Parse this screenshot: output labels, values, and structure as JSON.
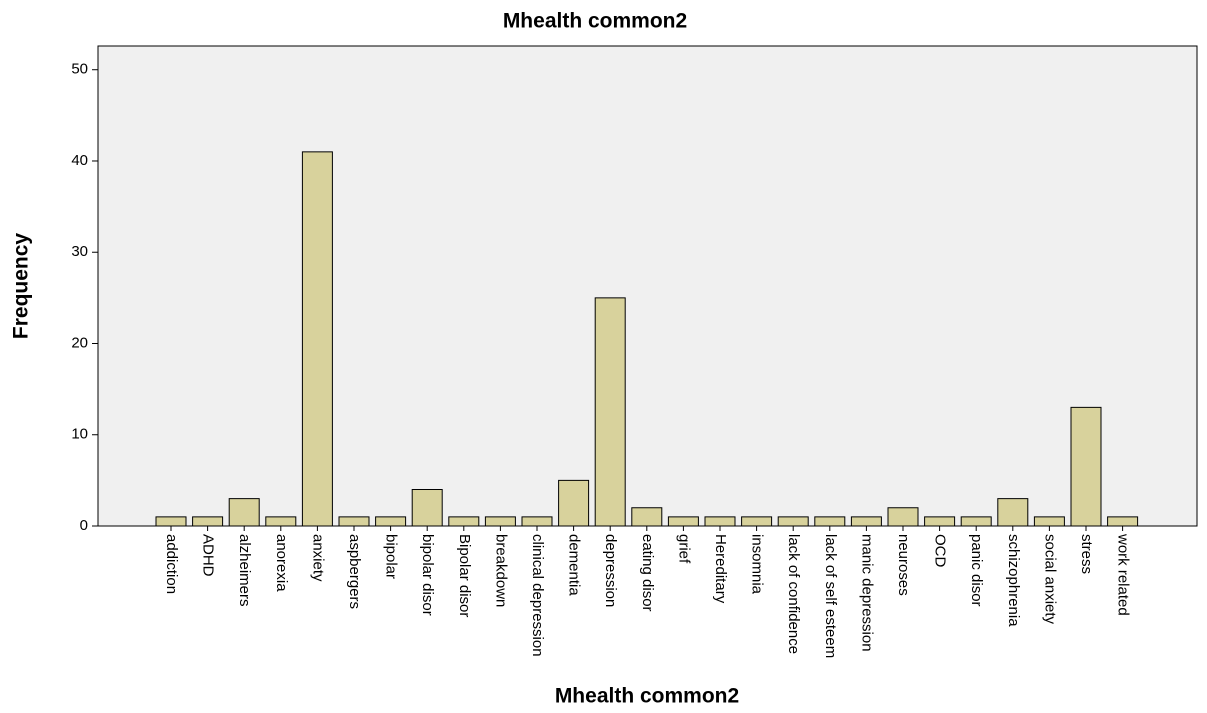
{
  "chart_data": {
    "type": "bar",
    "title": "Mhealth common2",
    "x_label": "Mhealth common2",
    "y_label": "Frequency",
    "categories": [
      "addiction",
      "ADHD",
      "alzheimers",
      "anorexia",
      "anxiety",
      "aspbergers",
      "bipolar",
      "bipolar disor",
      "Bipolar disor",
      "breakdown",
      "clinical depression",
      "dementia",
      "depression",
      "eating disor",
      "grief",
      "Hereditary",
      "insomnia",
      "lack of confidence",
      "lack of self esteem",
      "manic depression",
      "neuroses",
      "OCD",
      "panic disor",
      "schizophrenia",
      "social anxiety",
      "stress",
      "work related"
    ],
    "values": [
      1,
      1,
      3,
      1,
      41,
      1,
      1,
      4,
      1,
      1,
      1,
      5,
      25,
      2,
      1,
      1,
      1,
      1,
      1,
      1,
      2,
      1,
      1,
      3,
      1,
      13,
      1
    ],
    "color": "#d8d29c",
    "ylim": [
      0,
      52.6
    ],
    "yticks": [
      0,
      10,
      20,
      30,
      40,
      50
    ],
    "grid": false
  }
}
